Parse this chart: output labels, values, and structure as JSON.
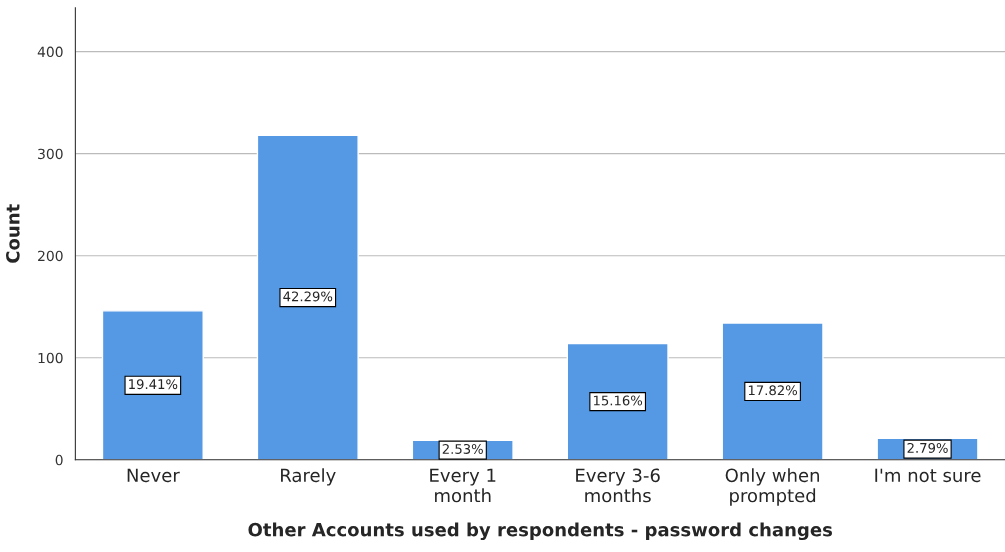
{
  "chart_data": {
    "type": "bar",
    "xlabel": "Other Accounts used by respondents - password changes",
    "ylabel": "Count",
    "categories": [
      "Never",
      "Rarely",
      "Every 1\nmonth",
      "Every 3-6\nmonths",
      "Only when\nprompted",
      "I'm not sure"
    ],
    "values": [
      146,
      318,
      19,
      114,
      134,
      21
    ],
    "annotations": [
      "19.41%",
      "42.29%",
      "2.53%",
      "15.16%",
      "17.82%",
      "2.79%"
    ],
    "color": "#5599e4",
    "ylim": [
      0,
      443
    ],
    "yticks": [
      0,
      100,
      200,
      300,
      400
    ],
    "grid": "y"
  }
}
